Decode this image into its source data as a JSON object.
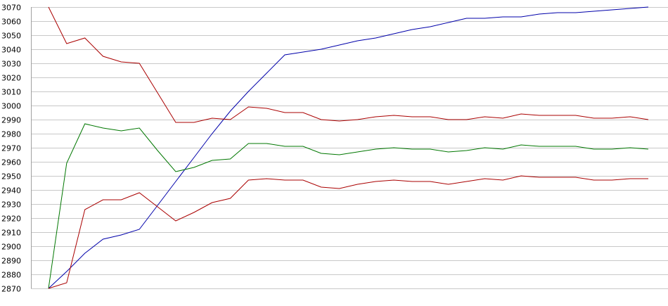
{
  "chart_data": {
    "type": "line",
    "title": "",
    "xlabel": "",
    "ylabel": "",
    "ylim": [
      2870,
      3070
    ],
    "yticks": [
      2870,
      2880,
      2890,
      2900,
      2910,
      2920,
      2930,
      2940,
      2950,
      2960,
      2970,
      2980,
      2990,
      3000,
      3010,
      3020,
      3030,
      3040,
      3050,
      3060,
      3070
    ],
    "grid": true,
    "legend": "none",
    "x": [
      1,
      2,
      3,
      4,
      5,
      6,
      7,
      8,
      9,
      10,
      11,
      12,
      13,
      14,
      15,
      16,
      17,
      18,
      19,
      20,
      21,
      22,
      23,
      24,
      25,
      26,
      27,
      28,
      29,
      30,
      31,
      32,
      33,
      34
    ],
    "series": [
      {
        "color": "#0000aa",
        "values": [
          2870,
          2882,
          2895,
          2905,
          2908,
          2912,
          2929,
          2946,
          2963,
          2980,
          2996,
          3010,
          3023,
          3036,
          3038,
          3040,
          3043,
          3046,
          3048,
          3051,
          3054,
          3056,
          3059,
          3062,
          3062,
          3063,
          3063,
          3065,
          3066,
          3066,
          3067,
          3068,
          3069,
          3070
        ]
      },
      {
        "color": "#aa0000",
        "values": [
          3070,
          3044,
          3048,
          3035,
          3031,
          3030,
          3009,
          2988,
          2988,
          2991,
          2990,
          2999,
          2998,
          2995,
          2995,
          2990,
          2989,
          2990,
          2992,
          2993,
          2992,
          2992,
          2990,
          2990,
          2992,
          2991,
          2994,
          2993,
          2993,
          2993,
          2991,
          2991,
          2992,
          2990
        ]
      },
      {
        "color": "#007700",
        "values": [
          2870,
          2959,
          2987,
          2984,
          2982,
          2984,
          2968,
          2953,
          2956,
          2961,
          2962,
          2973,
          2973,
          2971,
          2971,
          2966,
          2965,
          2967,
          2969,
          2970,
          2969,
          2969,
          2967,
          2968,
          2970,
          2969,
          2972,
          2971,
          2971,
          2971,
          2969,
          2969,
          2970,
          2969
        ]
      },
      {
        "color": "#aa0000",
        "values": [
          2870,
          2874,
          2926,
          2933,
          2933,
          2938,
          2928,
          2918,
          2924,
          2931,
          2934,
          2947,
          2948,
          2947,
          2947,
          2942,
          2941,
          2944,
          2946,
          2947,
          2946,
          2946,
          2944,
          2946,
          2948,
          2947,
          2950,
          2949,
          2949,
          2949,
          2947,
          2947,
          2948,
          2948
        ]
      }
    ]
  }
}
